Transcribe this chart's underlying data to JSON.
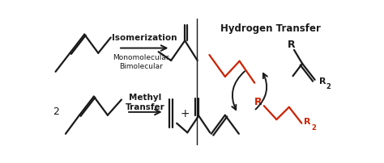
{
  "bg_color": "#ffffff",
  "black": "#1a1a1a",
  "red": "#cc2200",
  "lw": 1.6,
  "iso_label": "Isomerization",
  "iso_sub": "Monomolecular\nBimolecular",
  "methyl_label": "Methyl\nTransfer",
  "htrans_label": "Hydrogen Transfer",
  "plus": "+",
  "two": "2",
  "R_top": "R",
  "R2_top": "2",
  "R_bot": "R",
  "R2_bot": "2"
}
